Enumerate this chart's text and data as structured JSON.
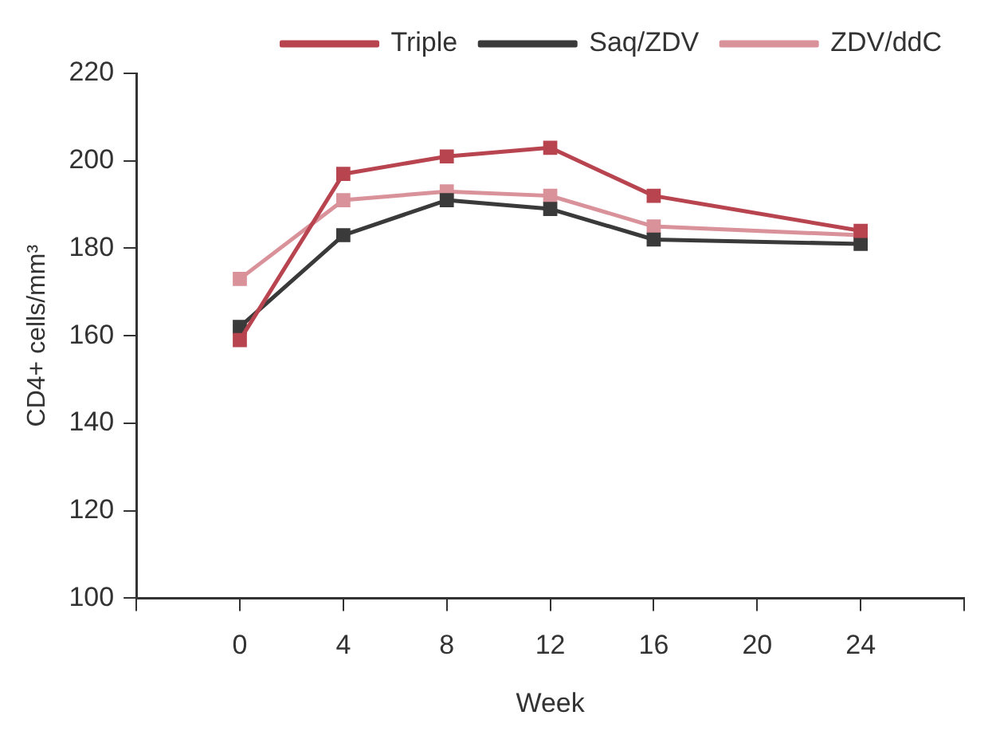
{
  "chart_data": {
    "type": "line",
    "xlabel": "Week",
    "ylabel": "CD4+ cells/mm³",
    "x": [
      0,
      4,
      8,
      12,
      16,
      24
    ],
    "series": [
      {
        "name": "Triple",
        "color": "#b8444f",
        "values": [
          159,
          197,
          201,
          203,
          192,
          184
        ]
      },
      {
        "name": "Saq/ZDV",
        "color": "#3a3a3a",
        "values": [
          162,
          183,
          191,
          189,
          182,
          181
        ]
      },
      {
        "name": "ZDV/ddC",
        "color": "#d9919a",
        "values": [
          173,
          191,
          193,
          192,
          185,
          183
        ]
      }
    ],
    "xlim": [
      -4,
      28
    ],
    "xticks": [
      {
        "value": -4,
        "label": null
      },
      0,
      4,
      8,
      12,
      16,
      20,
      24,
      {
        "value": 28,
        "label": null
      }
    ],
    "ylim": [
      100,
      220
    ],
    "yticks": [
      100,
      120,
      140,
      160,
      180,
      200,
      220
    ],
    "grid": false,
    "legend": "top",
    "marker": "square",
    "line_style": "solid"
  }
}
